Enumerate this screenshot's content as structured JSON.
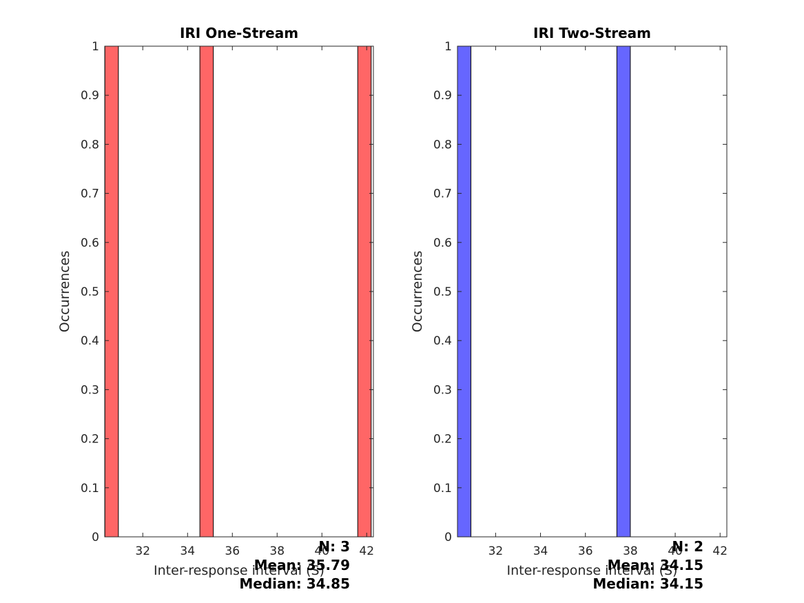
{
  "chart_data": [
    {
      "type": "bar",
      "title": "IRI One-Stream",
      "xlabel": "Inter-response interval (S)",
      "ylabel": "Occurrences",
      "xlim": [
        30.3,
        42.3
      ],
      "ylim": [
        0,
        1
      ],
      "xticks": [
        "32",
        "34",
        "36",
        "38",
        "40",
        "42"
      ],
      "yticks": [
        "0",
        "0.1",
        "0.2",
        "0.3",
        "0.4",
        "0.5",
        "0.6",
        "0.7",
        "0.8",
        "0.9",
        "1"
      ],
      "bar_color": "#ff6666",
      "bars": [
        {
          "x": 30.61,
          "value": 1
        },
        {
          "x": 34.85,
          "value": 1
        },
        {
          "x": 41.9,
          "value": 1
        }
      ],
      "stats": {
        "n": "N: 3",
        "mean": "Mean: 35.79",
        "median": "Median: 34.85"
      }
    },
    {
      "type": "bar",
      "title": "IRI Two-Stream",
      "xlabel": "Inter-response interval (S)",
      "ylabel": "Occurrences",
      "xlim": [
        30.3,
        42.3
      ],
      "ylim": [
        0,
        1
      ],
      "xticks": [
        "32",
        "34",
        "36",
        "38",
        "40",
        "42"
      ],
      "yticks": [
        "0",
        "0.1",
        "0.2",
        "0.3",
        "0.4",
        "0.5",
        "0.6",
        "0.7",
        "0.8",
        "0.9",
        "1"
      ],
      "bar_color": "#6666ff",
      "bars": [
        {
          "x": 30.6,
          "value": 1
        },
        {
          "x": 37.7,
          "value": 1
        }
      ],
      "stats": {
        "n": "N: 2",
        "mean": "Mean: 34.15",
        "median": "Median: 34.15"
      }
    }
  ]
}
